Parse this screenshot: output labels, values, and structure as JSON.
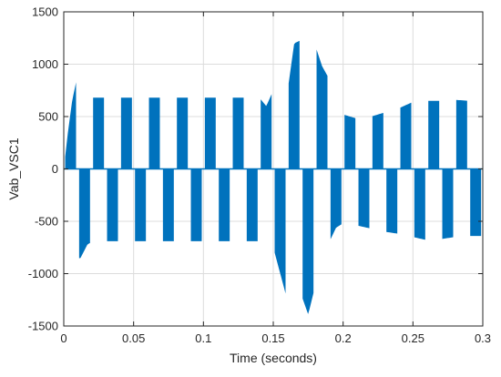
{
  "chart_data": {
    "type": "area",
    "title": "",
    "xlabel": "Time (seconds)",
    "ylabel": "Vab_VSC1",
    "xlim": [
      0,
      0.3
    ],
    "ylim": [
      -1500,
      1500
    ],
    "x_ticks": [
      0,
      0.05,
      0.1,
      0.15,
      0.2,
      0.25,
      0.3
    ],
    "x_tick_labels": [
      "0",
      "0.05",
      "0.1",
      "0.15",
      "0.2",
      "0.25",
      "0.3"
    ],
    "y_ticks": [
      -1500,
      -1000,
      -500,
      0,
      500,
      1000,
      1500
    ],
    "y_tick_labels": [
      "-1500",
      "-1000",
      "-500",
      "0",
      "500",
      "1000",
      "1500"
    ],
    "grid": true,
    "series_color": "#0072BD",
    "series": [
      {
        "x": [
          0,
          0.003,
          0.006,
          0.009,
          0.012,
          0.017,
          0.02,
          0.03,
          0.04,
          0.05,
          0.06,
          0.07,
          0.08,
          0.09,
          0.1,
          0.11,
          0.12,
          0.13,
          0.14,
          0.145,
          0.15,
          0.155,
          0.16,
          0.165,
          0.17,
          0.175,
          0.18,
          0.185,
          0.19,
          0.195,
          0.2,
          0.21,
          0.22,
          0.23,
          0.24,
          0.25,
          0.26,
          0.27,
          0.28,
          0.29,
          0.3
        ],
        "upper": [
          0,
          350,
          650,
          840,
          820,
          690,
          680,
          680,
          680,
          680,
          680,
          680,
          680,
          680,
          680,
          680,
          680,
          680,
          680,
          600,
          750,
          880,
          720,
          1200,
          1230,
          1320,
          1180,
          980,
          860,
          700,
          520,
          480,
          500,
          540,
          580,
          640,
          650,
          650,
          660,
          650,
          640
        ],
        "lower": [
          0,
          -300,
          -650,
          -860,
          -850,
          -720,
          -700,
          -690,
          -690,
          -690,
          -690,
          -690,
          -690,
          -690,
          -690,
          -690,
          -690,
          -690,
          -690,
          -480,
          -750,
          -1000,
          -1250,
          -1380,
          -1200,
          -1390,
          -1120,
          -840,
          -700,
          -560,
          -520,
          -540,
          -570,
          -600,
          -620,
          -650,
          -680,
          -670,
          -650,
          -640,
          -640
        ]
      }
    ]
  }
}
